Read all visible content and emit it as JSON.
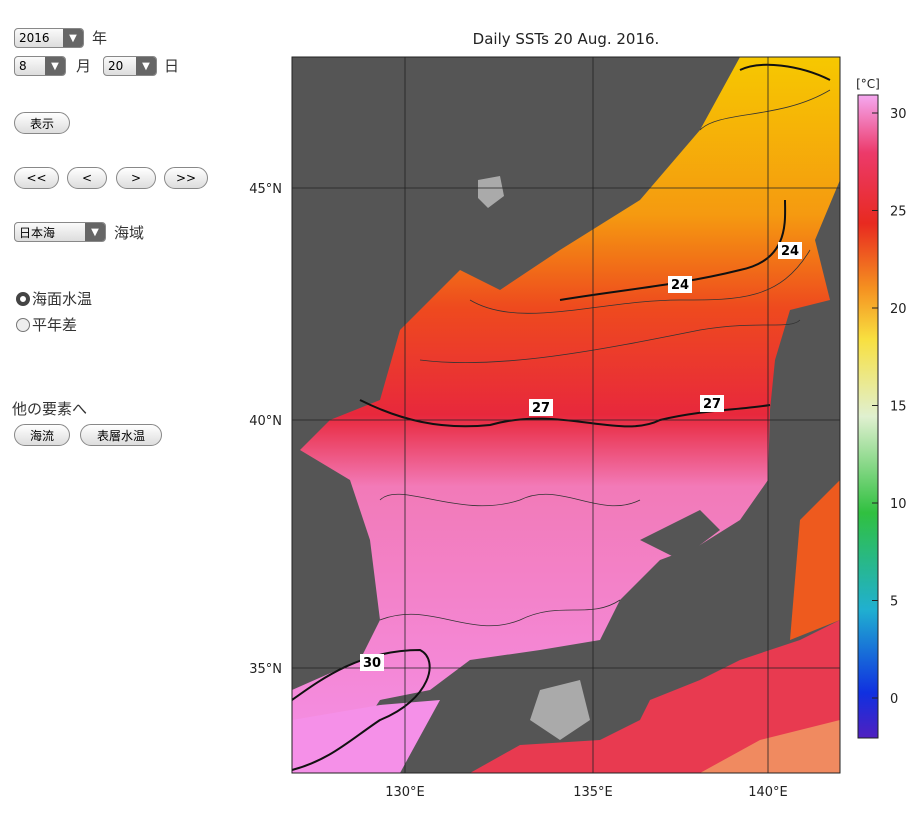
{
  "controls": {
    "year": "2016",
    "year_unit": "年",
    "month": "8",
    "month_unit": "月",
    "day": "20",
    "day_unit": "日",
    "show_button": "表示",
    "nav_buttons": [
      "<<",
      "<",
      ">",
      ">>"
    ],
    "region": "日本海",
    "region_unit": "海域",
    "radio_options": [
      "海面水温",
      "平年差"
    ],
    "other_label": "他の要素へ",
    "other_buttons": [
      "海流",
      "表層水温"
    ]
  },
  "map": {
    "title": "Daily SSTs 20 Aug. 2016.",
    "lat_labels": [
      "45°N",
      "40°N",
      "35°N"
    ],
    "lon_labels": [
      "130°E",
      "135°E",
      "140°E"
    ],
    "contour_labels": [
      "24",
      "24",
      "27",
      "27",
      "30"
    ],
    "colorbar": {
      "unit": "[°C]",
      "ticks": [
        30,
        25,
        20,
        15,
        10,
        5,
        0
      ]
    }
  }
}
